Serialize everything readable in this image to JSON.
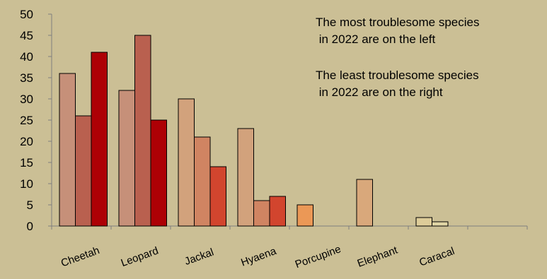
{
  "chart_data": {
    "type": "bar",
    "categories": [
      "Cheetah",
      "Leopard",
      "Jackal",
      "Hyaena",
      "Porcupine",
      "Elephant",
      "Caracal"
    ],
    "bars": [
      [
        36,
        26,
        41
      ],
      [
        32,
        45,
        25
      ],
      [
        30,
        21,
        14
      ],
      [
        23,
        6,
        7
      ],
      [
        5
      ],
      [
        11
      ],
      [
        2,
        1
      ]
    ],
    "bar_colors": [
      [
        "#c69079",
        "#b9604f",
        "#ad0005"
      ],
      [
        "#c69079",
        "#b9604f",
        "#ad0005"
      ],
      [
        "#d2a27c",
        "#d08462",
        "#d2452e"
      ],
      [
        "#d2a27c",
        "#d08462",
        "#d2452e"
      ],
      [
        "#eb9856"
      ],
      [
        "#d9a87b"
      ],
      [
        "#ddcc99",
        "#e0d5a5"
      ]
    ],
    "ylim": [
      0,
      50
    ],
    "yticks": [
      0,
      5,
      10,
      15,
      20,
      25,
      30,
      35,
      40,
      45,
      50
    ],
    "grid": false,
    "annotations": [
      "The most troublesome species\n in 2022 are on the left",
      "The least troublesome species\n in 2022 are on the right"
    ]
  },
  "colors": {
    "background": "#cbbf95",
    "axis": "#7f7f7f"
  }
}
